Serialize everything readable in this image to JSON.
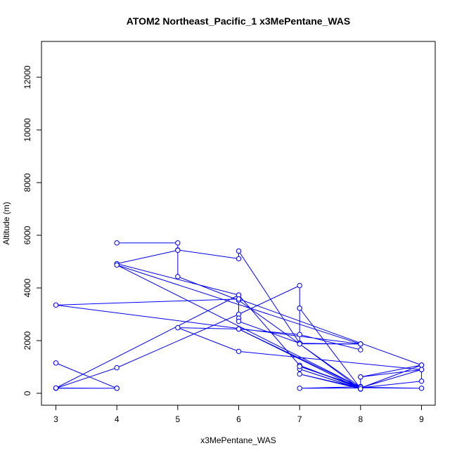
{
  "chart_data": {
    "type": "line",
    "title": "ATOM2 Northeast_Pacific_1 x3MePentane_WAS",
    "xlabel": "x3MePentane_WAS",
    "ylabel": "Altitude (m)",
    "xlim": [
      3,
      9
    ],
    "ylim": [
      0,
      13000
    ],
    "xticks": [
      3,
      4,
      5,
      6,
      7,
      8,
      9
    ],
    "yticks": [
      0,
      2000,
      4000,
      6000,
      8000,
      10000,
      12000
    ],
    "grid": false,
    "legend": "none",
    "series_color": "#0000ff",
    "series": [
      {
        "points": [
          [
            4,
            5710
          ],
          [
            5,
            5710
          ],
          [
            5,
            5440
          ],
          [
            6,
            5110
          ],
          [
            6,
            5400
          ],
          [
            7,
            1900
          ],
          [
            7,
            3230
          ],
          [
            7,
            1900
          ],
          [
            8,
            1870
          ],
          [
            7,
            1880
          ],
          [
            6,
            3530
          ],
          [
            5,
            4430
          ],
          [
            5,
            5430
          ],
          [
            4,
            4920
          ],
          [
            6,
            3730
          ],
          [
            7,
            1060
          ],
          [
            8,
            180
          ],
          [
            7,
            3230
          ],
          [
            7,
            4090
          ],
          [
            6,
            3000
          ],
          [
            4,
            970
          ],
          [
            3,
            190
          ],
          [
            4,
            190
          ],
          [
            3,
            1150
          ],
          [
            4,
            190
          ],
          [
            3,
            200
          ],
          [
            6,
            3730
          ],
          [
            6,
            2850
          ],
          [
            6,
            2730
          ],
          [
            7,
            1900
          ],
          [
            8,
            1870
          ],
          [
            8,
            1650
          ],
          [
            7,
            2230
          ],
          [
            6,
            2440
          ],
          [
            8,
            160
          ],
          [
            7,
            920
          ],
          [
            8,
            170
          ],
          [
            7,
            730
          ],
          [
            8,
            200
          ],
          [
            9,
            1070
          ],
          [
            8,
            620
          ],
          [
            8,
            210
          ],
          [
            9,
            460
          ],
          [
            9,
            900
          ],
          [
            8,
            210
          ],
          [
            9,
            190
          ],
          [
            8,
            230
          ],
          [
            8,
            250
          ],
          [
            8,
            200
          ],
          [
            7,
            190
          ],
          [
            8,
            250
          ],
          [
            7,
            1020
          ],
          [
            8,
            220
          ],
          [
            6,
            2440
          ],
          [
            5,
            2490
          ],
          [
            6,
            1590
          ],
          [
            9,
            900
          ],
          [
            8,
            620
          ],
          [
            8,
            200
          ],
          [
            9,
            1070
          ],
          [
            6,
            3580
          ],
          [
            3,
            3350
          ],
          [
            8,
            1870
          ],
          [
            4,
            4870
          ],
          [
            8,
            230
          ],
          [
            7,
            1870
          ],
          [
            8,
            170
          ]
        ]
      }
    ]
  }
}
